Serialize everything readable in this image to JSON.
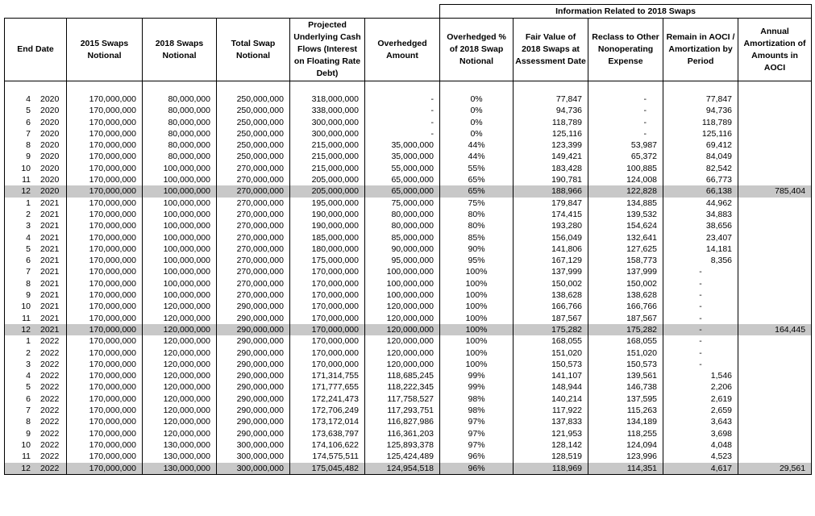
{
  "header": {
    "group_title": "Information Related to 2018 Swaps",
    "columns": [
      "End Date",
      "2015 Swaps Notional",
      "2018 Swaps Notional",
      "Total Swap Notional",
      "Projected Underlying Cash Flows (Interest on Floating Rate Debt)",
      "Overhedged Amount",
      "Overhedged % of 2018 Swap Notional",
      "Fair Value of 2018 Swaps at Assessment Date",
      "Reclass to Other Nonoperating Expense",
      "Remain in AOCI / Amortization by Period",
      "Annual Amortization of Amounts in AOCI"
    ]
  },
  "rows": [
    [
      "4",
      "2020",
      "170,000,000",
      "80,000,000",
      "250,000,000",
      "318,000,000",
      "-",
      "0%",
      "77,847",
      "-",
      "77,847"
    ],
    [
      "5",
      "2020",
      "170,000,000",
      "80,000,000",
      "250,000,000",
      "338,000,000",
      "-",
      "0%",
      "94,736",
      "-",
      "94,736"
    ],
    [
      "6",
      "2020",
      "170,000,000",
      "80,000,000",
      "250,000,000",
      "300,000,000",
      "-",
      "0%",
      "118,789",
      "-",
      "118,789"
    ],
    [
      "7",
      "2020",
      "170,000,000",
      "80,000,000",
      "250,000,000",
      "300,000,000",
      "-",
      "0%",
      "125,116",
      "-",
      "125,116"
    ],
    [
      "8",
      "2020",
      "170,000,000",
      "80,000,000",
      "250,000,000",
      "215,000,000",
      "35,000,000",
      "44%",
      "123,399",
      "53,987",
      "69,412"
    ],
    [
      "9",
      "2020",
      "170,000,000",
      "80,000,000",
      "250,000,000",
      "215,000,000",
      "35,000,000",
      "44%",
      "149,421",
      "65,372",
      "84,049"
    ],
    [
      "10",
      "2020",
      "170,000,000",
      "100,000,000",
      "270,000,000",
      "215,000,000",
      "55,000,000",
      "55%",
      "183,428",
      "100,885",
      "82,542"
    ],
    [
      "11",
      "2020",
      "170,000,000",
      "100,000,000",
      "270,000,000",
      "205,000,000",
      "65,000,000",
      "65%",
      "190,781",
      "124,008",
      "66,773"
    ],
    [
      "12",
      "2020",
      "170,000,000",
      "100,000,000",
      "270,000,000",
      "205,000,000",
      "65,000,000",
      "65%",
      "188,966",
      "122,828",
      "66,138",
      "785,404"
    ],
    [
      "1",
      "2021",
      "170,000,000",
      "100,000,000",
      "270,000,000",
      "195,000,000",
      "75,000,000",
      "75%",
      "179,847",
      "134,885",
      "44,962"
    ],
    [
      "2",
      "2021",
      "170,000,000",
      "100,000,000",
      "270,000,000",
      "190,000,000",
      "80,000,000",
      "80%",
      "174,415",
      "139,532",
      "34,883"
    ],
    [
      "3",
      "2021",
      "170,000,000",
      "100,000,000",
      "270,000,000",
      "190,000,000",
      "80,000,000",
      "80%",
      "193,280",
      "154,624",
      "38,656"
    ],
    [
      "4",
      "2021",
      "170,000,000",
      "100,000,000",
      "270,000,000",
      "185,000,000",
      "85,000,000",
      "85%",
      "156,049",
      "132,641",
      "23,407"
    ],
    [
      "5",
      "2021",
      "170,000,000",
      "100,000,000",
      "270,000,000",
      "180,000,000",
      "90,000,000",
      "90%",
      "141,806",
      "127,625",
      "14,181"
    ],
    [
      "6",
      "2021",
      "170,000,000",
      "100,000,000",
      "270,000,000",
      "175,000,000",
      "95,000,000",
      "95%",
      "167,129",
      "158,773",
      "8,356"
    ],
    [
      "7",
      "2021",
      "170,000,000",
      "100,000,000",
      "270,000,000",
      "170,000,000",
      "100,000,000",
      "100%",
      "137,999",
      "137,999",
      "-"
    ],
    [
      "8",
      "2021",
      "170,000,000",
      "100,000,000",
      "270,000,000",
      "170,000,000",
      "100,000,000",
      "100%",
      "150,002",
      "150,002",
      "-"
    ],
    [
      "9",
      "2021",
      "170,000,000",
      "100,000,000",
      "270,000,000",
      "170,000,000",
      "100,000,000",
      "100%",
      "138,628",
      "138,628",
      "-"
    ],
    [
      "10",
      "2021",
      "170,000,000",
      "120,000,000",
      "290,000,000",
      "170,000,000",
      "120,000,000",
      "100%",
      "166,766",
      "166,766",
      "-"
    ],
    [
      "11",
      "2021",
      "170,000,000",
      "120,000,000",
      "290,000,000",
      "170,000,000",
      "120,000,000",
      "100%",
      "187,567",
      "187,567",
      "-"
    ],
    [
      "12",
      "2021",
      "170,000,000",
      "120,000,000",
      "290,000,000",
      "170,000,000",
      "120,000,000",
      "100%",
      "175,282",
      "175,282",
      "-",
      "164,445"
    ],
    [
      "1",
      "2022",
      "170,000,000",
      "120,000,000",
      "290,000,000",
      "170,000,000",
      "120,000,000",
      "100%",
      "168,055",
      "168,055",
      "-"
    ],
    [
      "2",
      "2022",
      "170,000,000",
      "120,000,000",
      "290,000,000",
      "170,000,000",
      "120,000,000",
      "100%",
      "151,020",
      "151,020",
      "-"
    ],
    [
      "3",
      "2022",
      "170,000,000",
      "120,000,000",
      "290,000,000",
      "170,000,000",
      "120,000,000",
      "100%",
      "150,573",
      "150,573",
      "-"
    ],
    [
      "4",
      "2022",
      "170,000,000",
      "120,000,000",
      "290,000,000",
      "171,314,755",
      "118,685,245",
      "99%",
      "141,107",
      "139,561",
      "1,546"
    ],
    [
      "5",
      "2022",
      "170,000,000",
      "120,000,000",
      "290,000,000",
      "171,777,655",
      "118,222,345",
      "99%",
      "148,944",
      "146,738",
      "2,206"
    ],
    [
      "6",
      "2022",
      "170,000,000",
      "120,000,000",
      "290,000,000",
      "172,241,473",
      "117,758,527",
      "98%",
      "140,214",
      "137,595",
      "2,619"
    ],
    [
      "7",
      "2022",
      "170,000,000",
      "120,000,000",
      "290,000,000",
      "172,706,249",
      "117,293,751",
      "98%",
      "117,922",
      "115,263",
      "2,659"
    ],
    [
      "8",
      "2022",
      "170,000,000",
      "120,000,000",
      "290,000,000",
      "173,172,014",
      "116,827,986",
      "97%",
      "137,833",
      "134,189",
      "3,643"
    ],
    [
      "9",
      "2022",
      "170,000,000",
      "120,000,000",
      "290,000,000",
      "173,638,797",
      "116,361,203",
      "97%",
      "121,953",
      "118,255",
      "3,698"
    ],
    [
      "10",
      "2022",
      "170,000,000",
      "130,000,000",
      "300,000,000",
      "174,106,622",
      "125,893,378",
      "97%",
      "128,142",
      "124,094",
      "4,048"
    ],
    [
      "11",
      "2022",
      "170,000,000",
      "130,000,000",
      "300,000,000",
      "174,575,511",
      "125,424,489",
      "96%",
      "128,519",
      "123,996",
      "4,523"
    ],
    [
      "12",
      "2022",
      "170,000,000",
      "130,000,000",
      "300,000,000",
      "175,045,482",
      "124,954,518",
      "96%",
      "118,969",
      "114,351",
      "4,617",
      "29,561"
    ]
  ]
}
